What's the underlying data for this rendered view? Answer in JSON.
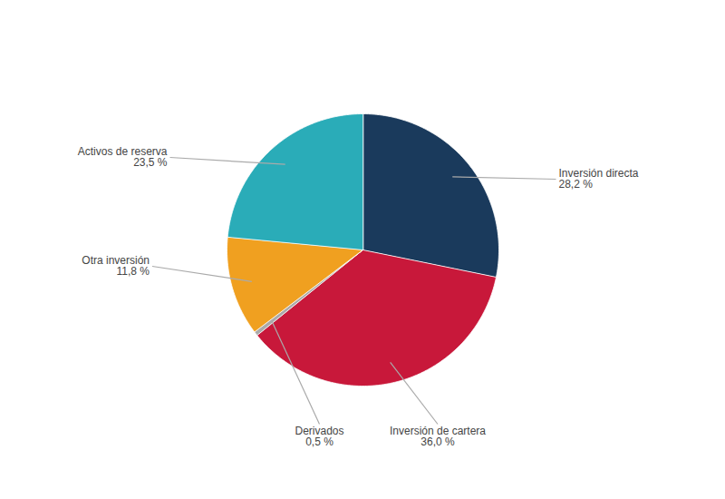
{
  "chart_data": {
    "type": "pie",
    "categories": [
      "Inversión directa",
      "Inversión de cartera",
      "Derivados",
      "Otra inversión",
      "Activos de reserva"
    ],
    "values": [
      28.2,
      36.0,
      0.5,
      11.8,
      23.5
    ],
    "value_labels": [
      "28,2 %",
      "36,0 %",
      "0,5 %",
      "11,8 %",
      "23,5 %"
    ],
    "colors": [
      "#1a3a5c",
      "#c8183a",
      "#aaaaaa",
      "#f0a020",
      "#2aacb8"
    ],
    "data_labels": true
  }
}
